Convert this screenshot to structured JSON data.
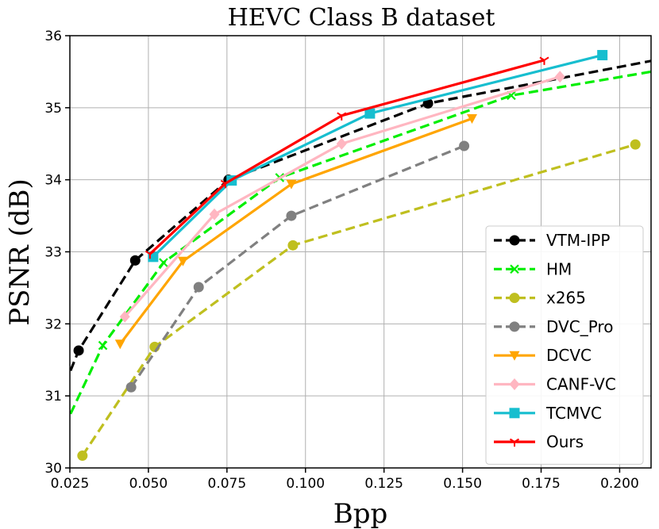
{
  "chart_data": {
    "type": "line",
    "title": "HEVC Class B dataset",
    "xlabel": "Bpp",
    "ylabel": "PSNR (dB)",
    "xlim": [
      0.025,
      0.21
    ],
    "ylim": [
      30,
      36
    ],
    "grid": true,
    "legend_position": "lower-right",
    "xticks": [
      0.025,
      0.05,
      0.075,
      0.1,
      0.125,
      0.15,
      0.175,
      0.2
    ],
    "xtick_labels": [
      "0.025",
      "0.050",
      "0.075",
      "0.100",
      "0.125",
      "0.150",
      "0.175",
      "0.200"
    ],
    "yticks": [
      30,
      31,
      32,
      33,
      34,
      35,
      36
    ],
    "ytick_labels": [
      "30",
      "31",
      "32",
      "33",
      "34",
      "35",
      "36"
    ],
    "series": [
      {
        "name": "VTM-IPP",
        "color": "#000000",
        "dash": "dashed",
        "marker": "circle",
        "x": [
          0.0252,
          0.0278,
          0.0458,
          0.0755,
          0.139,
          0.21
        ],
        "y": [
          31.35,
          31.63,
          32.88,
          34.0,
          35.06,
          35.65
        ],
        "marked": [
          false,
          true,
          true,
          true,
          true,
          false
        ]
      },
      {
        "name": "HM",
        "color": "#00ee00",
        "dash": "dashed",
        "marker": "x",
        "x": [
          0.0252,
          0.0355,
          0.0548,
          0.0918,
          0.1655,
          0.21
        ],
        "y": [
          30.75,
          31.7,
          32.85,
          34.03,
          35.17,
          35.5
        ],
        "marked": [
          false,
          true,
          true,
          true,
          true,
          false
        ]
      },
      {
        "name": "x265",
        "color": "#bfbf1f",
        "dash": "dashed",
        "marker": "circle",
        "x": [
          0.029,
          0.052,
          0.096,
          0.205
        ],
        "y": [
          30.17,
          31.68,
          33.09,
          34.49
        ],
        "marked": [
          true,
          true,
          true,
          true
        ]
      },
      {
        "name": "DVC_Pro",
        "color": "#808080",
        "dash": "dashed",
        "marker": "circle",
        "x": [
          0.0445,
          0.066,
          0.0955,
          0.1505
        ],
        "y": [
          31.12,
          32.51,
          33.5,
          34.47
        ],
        "marked": [
          true,
          true,
          true,
          true
        ]
      },
      {
        "name": "DCVC",
        "color": "#ffa500",
        "dash": "solid",
        "marker": "triangle-down",
        "x": [
          0.041,
          0.061,
          0.0955,
          0.153
        ],
        "y": [
          31.72,
          32.87,
          33.94,
          34.85
        ],
        "marked": [
          true,
          true,
          true,
          true
        ]
      },
      {
        "name": "CANF-VC",
        "color": "#ffb6c1",
        "dash": "solid",
        "marker": "diamond",
        "x": [
          0.0425,
          0.071,
          0.1115,
          0.181
        ],
        "y": [
          32.1,
          33.52,
          34.5,
          35.43
        ],
        "marked": [
          true,
          true,
          true,
          true
        ]
      },
      {
        "name": "TCMVC",
        "color": "#17becf",
        "dash": "solid",
        "marker": "square",
        "x": [
          0.0515,
          0.0765,
          0.1205,
          0.1945
        ],
        "y": [
          32.93,
          33.99,
          34.92,
          35.73
        ],
        "marked": [
          true,
          true,
          true,
          true
        ]
      },
      {
        "name": "Ours",
        "color": "#ff0000",
        "dash": "solid",
        "marker": "tri-down",
        "x": [
          0.0505,
          0.0745,
          0.1115,
          0.176
        ],
        "y": [
          32.97,
          33.95,
          34.89,
          35.66
        ],
        "marked": [
          true,
          true,
          true,
          true
        ]
      }
    ]
  }
}
